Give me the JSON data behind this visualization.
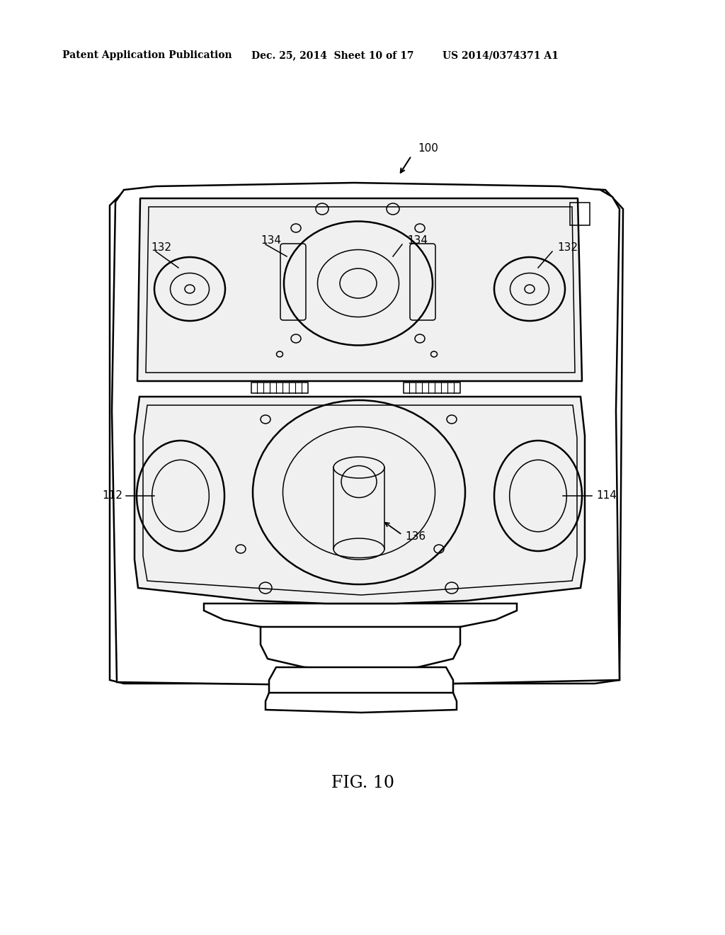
{
  "bg_color": "#ffffff",
  "header_left": "Patent Application Publication",
  "header_mid": "Dec. 25, 2014  Sheet 10 of 17",
  "header_right": "US 2014/0374371 A1",
  "fig_label": "FIG. 10",
  "label_100": "100",
  "label_112": "112",
  "label_114": "114",
  "label_132a": "132",
  "label_132b": "132",
  "label_134a": "134",
  "label_134b": "134",
  "label_136": "136",
  "lw_main": 1.8,
  "lw_thin": 1.1,
  "lw_heavy": 2.2
}
